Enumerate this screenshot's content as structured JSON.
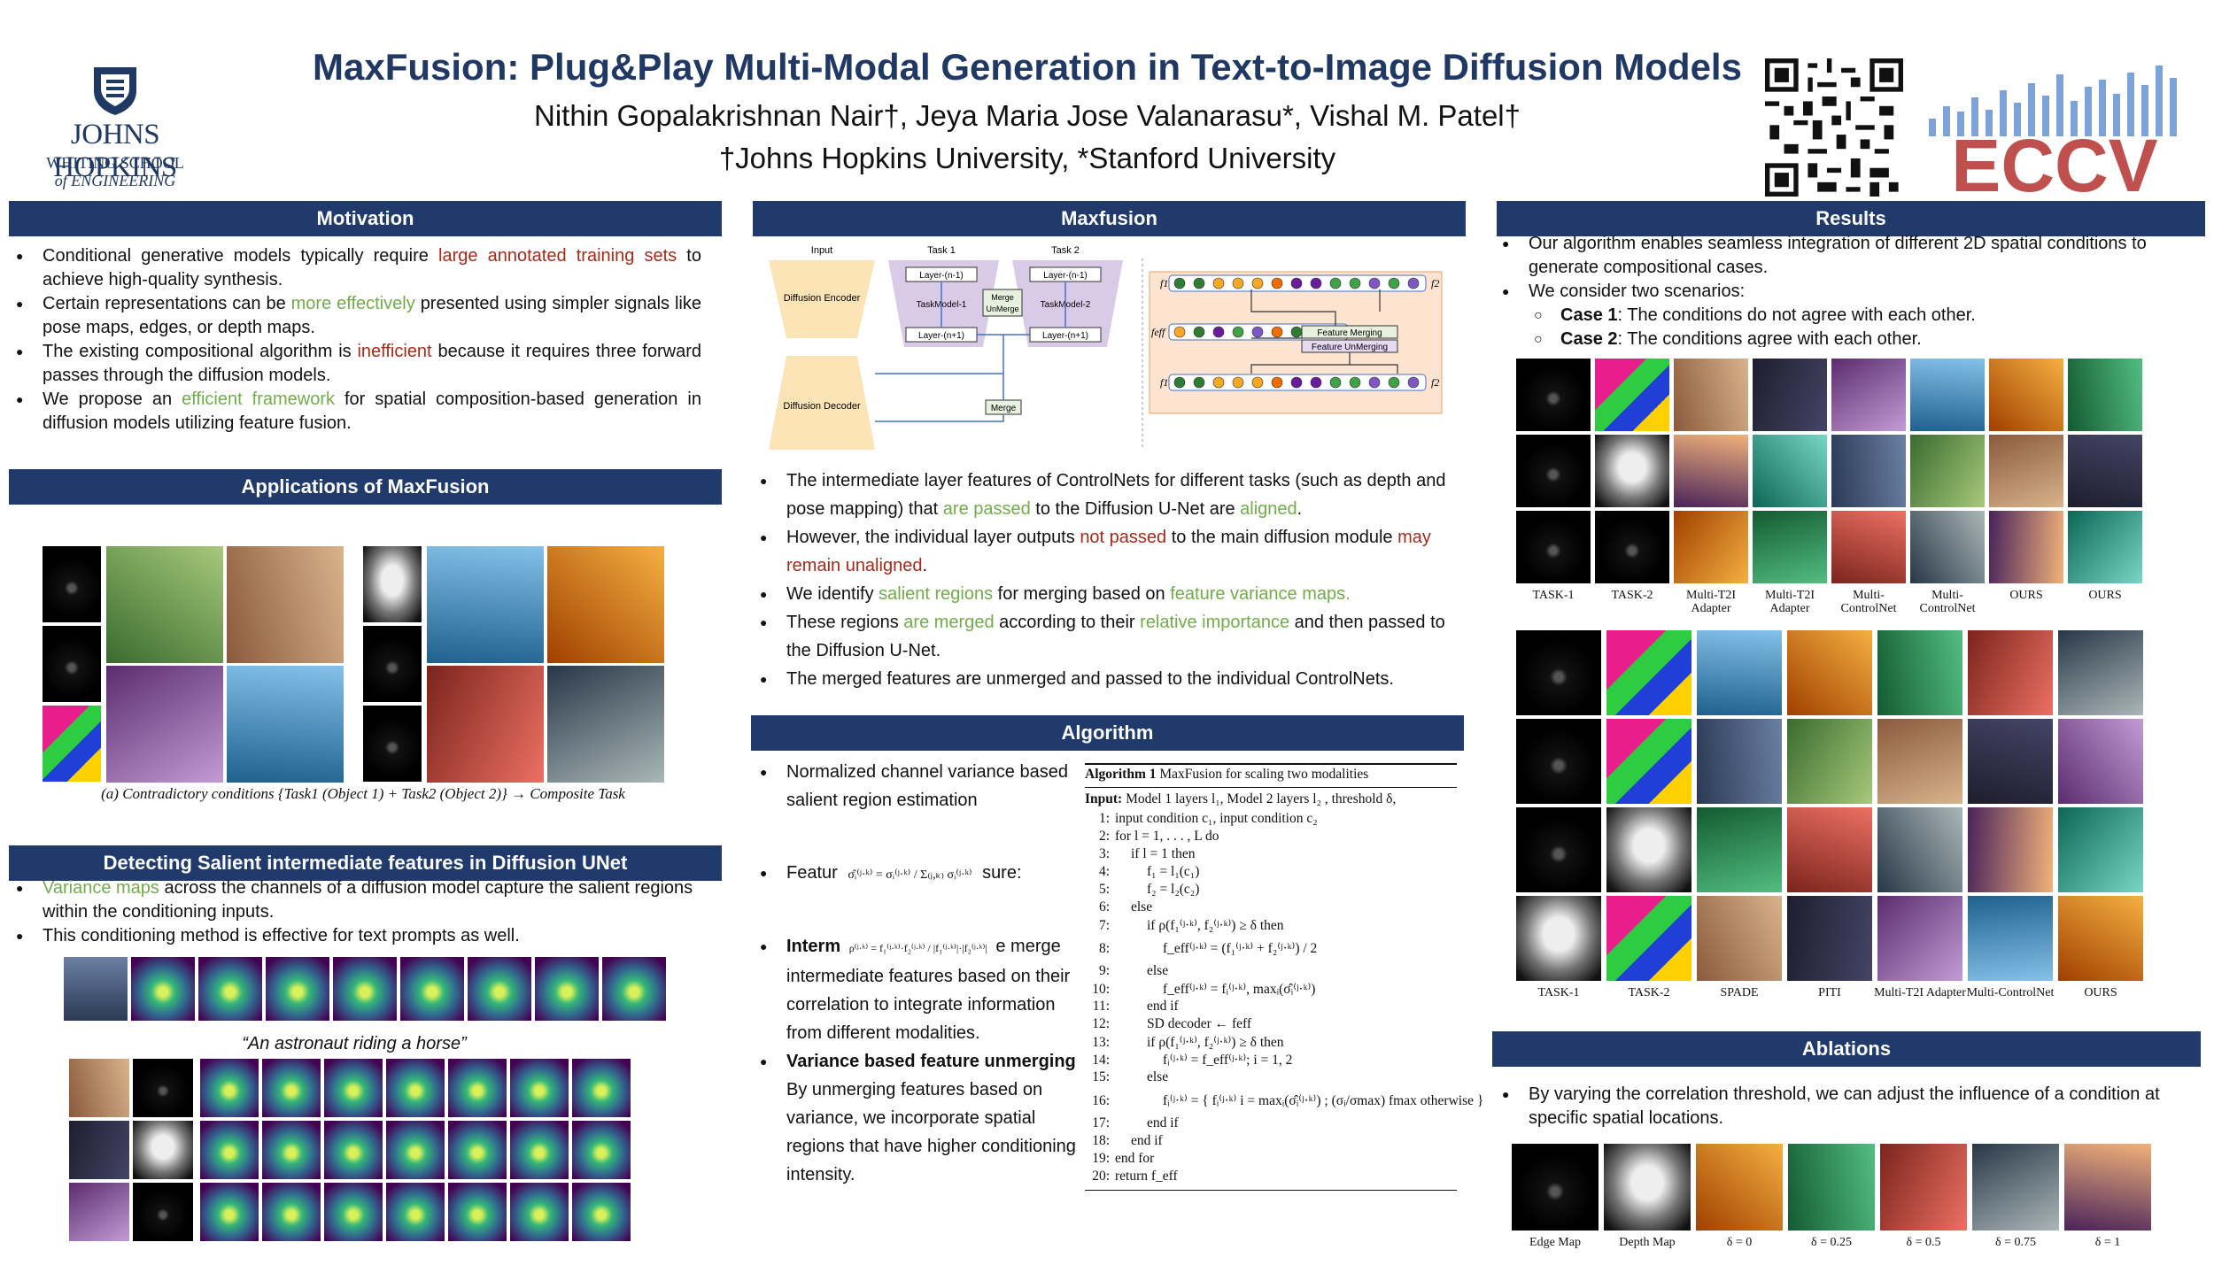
{
  "header": {
    "title": "MaxFusion: Plug&Play Multi-Modal Generation in Text-to-Image Diffusion Models",
    "authors": "Nithin Gopalakrishnan Nair†,  Jeya Maria Jose Valanarasu*,  Vishal M. Patel†",
    "affiliations": "†Johns Hopkins University, *Stanford University"
  },
  "logos": {
    "jhu_name": "JOHNS HOPKINS",
    "jhu_sub1": "WHITING SCHOOL",
    "jhu_sub2": "of ENGINEERING",
    "eccv": "ECCV",
    "brand_color": "#1f3864",
    "eccv_color": "#c0504d",
    "eccv_bars_color": "#4472c4"
  },
  "sections": {
    "motivation": "Motivation",
    "applications": "Applications of MaxFusion",
    "salient": "Detecting Salient intermediate features in Diffusion UNet",
    "maxfusion": "Maxfusion",
    "algorithm": "Algorithm",
    "results": "Results",
    "ablations": "Ablations",
    "header_color": "#1f3a6b"
  },
  "motivation": [
    {
      "a": "Conditional generative models typically require ",
      "h": "large annotated training sets",
      "hc": "red",
      "b": " to achieve high-quality synthesis."
    },
    {
      "a": "Certain representations can be ",
      "h": "more effectively",
      "hc": "grn",
      "b": " presented using simpler signals like pose maps, edges, or depth maps."
    },
    {
      "a": "The existing compositional algorithm is ",
      "h": "inefficient",
      "hc": "red",
      "b": " because it requires three forward passes through the diffusion models."
    },
    {
      "a": "We propose an ",
      "h": "efficient framework",
      "hc": "grn",
      "b": " for spatial composition-based generation in diffusion models utilizing feature fusion."
    }
  ],
  "applications": {
    "caption": "(a) Contradictory conditions {Task1 (Object 1) + Task2 (Object 2)} → Composite Task"
  },
  "salient": {
    "bullets": [
      {
        "h": "Variance maps",
        "b": " across the channels of a diffusion model capture the salient regions within the conditioning inputs."
      },
      {
        "h": "",
        "b": "This conditioning method is effective for text prompts as well."
      }
    ],
    "prompt": "“An astronaut riding a horse”"
  },
  "maxfusion": {
    "diagram": {
      "input": "Input",
      "task1": "Task 1",
      "task2": "Task 2",
      "encoder": "Diffusion Encoder",
      "decoder": "Diffusion Decoder",
      "layer_prev": "Layer-(n-1)",
      "layer_next": "Layer-(n+1)",
      "model1": "TaskModel-1",
      "model2": "TaskModel-2",
      "merge": "Merge",
      "unmerge": "UnMerge",
      "f1": "f1",
      "f2": "f2",
      "feff": "feff",
      "feature_merging": "Feature Merging",
      "feature_unmerging": "Feature UnMerging"
    },
    "bullets": [
      [
        {
          "t": "The intermediate layer features of ControlNets for different tasks (such as depth and pose mapping) that "
        },
        {
          "t": "are passed",
          "c": "grn"
        },
        {
          "t": " to the Diffusion U-Net are "
        },
        {
          "t": "aligned",
          "c": "grn"
        },
        {
          "t": "."
        }
      ],
      [
        {
          "t": "However, the individual layer outputs "
        },
        {
          "t": "not passed",
          "c": "red"
        },
        {
          "t": " to the main diffusion module "
        },
        {
          "t": "may remain unaligned",
          "c": "red"
        },
        {
          "t": "."
        }
      ],
      [
        {
          "t": "We identify "
        },
        {
          "t": "salient regions",
          "c": "grn"
        },
        {
          "t": " for merging based on "
        },
        {
          "t": "feature variance maps.",
          "c": "grn"
        }
      ],
      [
        {
          "t": "These regions "
        },
        {
          "t": "are merged",
          "c": "grn"
        },
        {
          "t": " according to their "
        },
        {
          "t": "relative importance",
          "c": "grn"
        },
        {
          "t": " and then passed to the Diffusion U-Net."
        }
      ],
      [
        {
          "t": "The merged features are unmerged and passed to the individual ControlNets."
        }
      ]
    ]
  },
  "algorithm_text": {
    "b1": "Normalized channel variance based salient region estimation",
    "b2_bold": "Featur",
    "b2_rest": "sure:",
    "b3_bold": "Interm",
    "b3_rest": "e merge intermediate features based on their correlation to integrate information from different modalities.",
    "b4_bold": "Variance based feature unmerging",
    "b4_rest": "By unmerging features based on variance, we incorporate spatial regions that have higher conditioning intensity.",
    "eq1": "σ̂ᵢ⁽ʲ·ᵏ⁾ = σᵢ⁽ʲ·ᵏ⁾ / Σ₍ⱼ,ₖ₎ σᵢ⁽ʲ·ᵏ⁾",
    "eq2": "ρ⁽ʲ·ᵏ⁾ = f₁⁽ʲ·ᵏ⁾·f₂⁽ʲ·ᵏ⁾ / |f₁⁽ʲ·ᵏ⁾|·|f₂⁽ʲ·ᵏ⁾|"
  },
  "algorithm_box": {
    "title_bold": "Algorithm 1",
    "title_rest": " MaxFusion for scaling two modalities",
    "input_bold": "Input:",
    "input_rest": " Model 1 layers l₁, Model 2 layers l₂ , threshold δ,",
    "lines": [
      {
        "n": "1:",
        "i": 0,
        "t": "input condition c₁, input condition c₂"
      },
      {
        "n": "2:",
        "i": 0,
        "t": "for l = 1, . . . , L do"
      },
      {
        "n": "3:",
        "i": 1,
        "t": "if l = 1 then"
      },
      {
        "n": "4:",
        "i": 2,
        "t": "f₁ = l₁(c₁)"
      },
      {
        "n": "5:",
        "i": 2,
        "t": "f₂ = l₂(c₂)"
      },
      {
        "n": "6:",
        "i": 1,
        "t": "else"
      },
      {
        "n": "7:",
        "i": 2,
        "t": "if ρ(f₁⁽ʲ·ᵏ⁾, f₂⁽ʲ·ᵏ⁾) ≥ δ then"
      },
      {
        "n": "8:",
        "i": 3,
        "t": "f_eff⁽ʲ·ᵏ⁾ = (f₁⁽ʲ·ᵏ⁾ + f₂⁽ʲ·ᵏ⁾) / 2"
      },
      {
        "n": "9:",
        "i": 2,
        "t": "else"
      },
      {
        "n": "10:",
        "i": 3,
        "t": "f_eff⁽ʲ·ᵏ⁾ = fᵢ⁽ʲ·ᵏ⁾, maxᵢ(σ̂ᵢ⁽ʲ·ᵏ⁾)"
      },
      {
        "n": "11:",
        "i": 2,
        "t": "end if"
      },
      {
        "n": "12:",
        "i": 2,
        "t": "SD decoder ← feff"
      },
      {
        "n": "13:",
        "i": 2,
        "t": "if ρ(f₁⁽ʲ·ᵏ⁾, f₂⁽ʲ·ᵏ⁾) ≥ δ then"
      },
      {
        "n": "14:",
        "i": 3,
        "t": "fᵢ⁽ʲ·ᵏ⁾ = f_eff⁽ʲ·ᵏ⁾; i = 1, 2"
      },
      {
        "n": "15:",
        "i": 2,
        "t": "else"
      },
      {
        "n": "16:",
        "i": 3,
        "t": "fᵢ⁽ʲ·ᵏ⁾ = { fᵢ⁽ʲ·ᵏ⁾  i = maxᵢ(σ̂ᵢ⁽ʲ·ᵏ⁾) ; (σᵢ/σmax) fmax  otherwise }"
      },
      {
        "n": "17:",
        "i": 2,
        "t": "end if"
      },
      {
        "n": "18:",
        "i": 1,
        "t": "end if"
      },
      {
        "n": "19:",
        "i": 0,
        "t": "end for"
      },
      {
        "n": "20:",
        "i": 0,
        "t": "return f_eff"
      }
    ]
  },
  "results": {
    "bullets": [
      "Our algorithm enables seamless integration of different 2D spatial conditions to generate compositional cases.",
      "We consider two scenarios:"
    ],
    "subs": [
      {
        "b": "Case 1",
        "t": ": The conditions do not agree with each other."
      },
      {
        "b": "Case 2",
        "t": ": The conditions agree with each other."
      }
    ],
    "grid1_labels": [
      "TASK-1",
      "TASK-2",
      "Multi-T2I Adapter",
      "Multi-T2I Adapter",
      "Multi-ControlNet",
      "Multi-ControlNet",
      "OURS",
      "OURS"
    ],
    "grid2_labels": [
      "TASK-1",
      "TASK-2",
      "SPADE",
      "PITI",
      "Multi-T2I Adapter",
      "Multi-ControlNet",
      "OURS"
    ]
  },
  "ablations": {
    "bullet": "By varying the correlation threshold, we can adjust the influence of a condition at specific spatial locations.",
    "labels": [
      "Edge Map",
      "Depth Map",
      "δ = 0",
      "δ = 0.25",
      "δ = 0.5",
      "δ = 0.75",
      "δ = 1"
    ]
  }
}
